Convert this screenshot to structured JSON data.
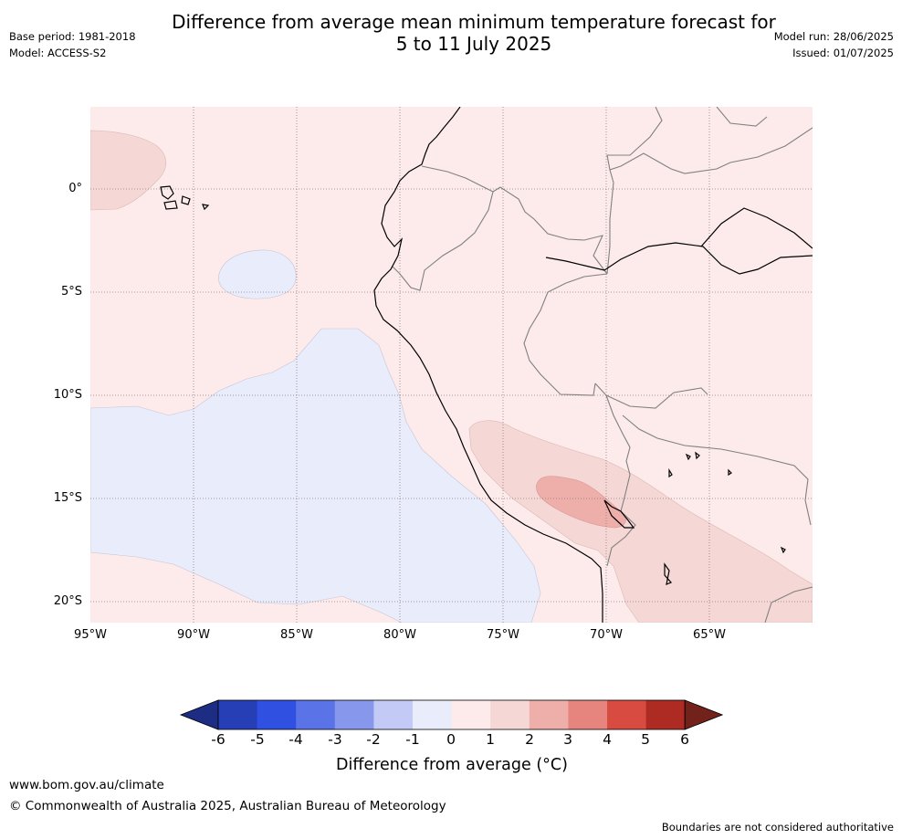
{
  "title": {
    "line1": "Difference from average mean minimum temperature forecast for",
    "line2": "5 to 11 July 2025"
  },
  "meta": {
    "base_period": "Base period: 1981-2018",
    "model": "Model: ACCESS-S2",
    "model_run": "Model run: 28/06/2025",
    "issued": "Issued: 01/07/2025"
  },
  "map": {
    "lat_labels": [
      "0°",
      "5°S",
      "10°S",
      "15°S",
      "20°S"
    ],
    "lon_labels": [
      "95°W",
      "90°W",
      "85°W",
      "80°W",
      "75°W",
      "70°W",
      "65°W"
    ],
    "colors": {
      "ocean_warm": "#fcebea",
      "cool_region": "#e8ecfb",
      "warm_1_2": "#f5d8d5",
      "warm_2_3": "#eeaeaa",
      "coastline": "#000000",
      "borders": "#808080",
      "gridline": "#8a7f7f"
    }
  },
  "colorbar": {
    "title": "Difference from average (",
    "title_unit": "°C)",
    "tick_labels": [
      "-6",
      "-5",
      "-4",
      "-3",
      "-2",
      "-1",
      "0",
      "1",
      "2",
      "3",
      "4",
      "5",
      "6"
    ],
    "colors": [
      "#1d2d84",
      "#263fb6",
      "#3050e2",
      "#5a73e6",
      "#8797ec",
      "#c2caf5",
      "#e8ecfb",
      "#fcebea",
      "#f5d8d5",
      "#eeaeaa",
      "#e6857e",
      "#d84b40",
      "#ad2b22",
      "#72211b"
    ]
  },
  "footer": {
    "website": "www.bom.gov.au/climate",
    "copyright": "© Commonwealth of Australia 2025, Australian Bureau of Meteorology",
    "disclaimer": "Boundaries are not considered authoritative"
  }
}
